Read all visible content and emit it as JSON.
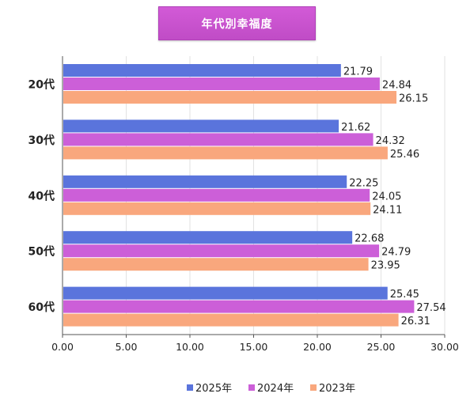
{
  "chart_data": {
    "type": "bar",
    "orientation": "horizontal",
    "title": "年代別幸福度",
    "xlabel": "",
    "ylabel": "",
    "categories": [
      "20代",
      "30代",
      "40代",
      "50代",
      "60代"
    ],
    "series": [
      {
        "name": "2025年",
        "color": "#5a74dc",
        "values": [
          21.79,
          21.62,
          22.25,
          22.68,
          25.45
        ]
      },
      {
        "name": "2024年",
        "color": "#cc5fd8",
        "values": [
          24.84,
          24.32,
          24.05,
          24.79,
          27.54
        ]
      },
      {
        "name": "2023年",
        "color": "#f9a77d",
        "values": [
          26.15,
          25.46,
          24.11,
          23.95,
          26.31
        ]
      }
    ],
    "xlim": [
      0,
      30
    ],
    "xticks": [
      "0.00",
      "5.00",
      "10.00",
      "15.00",
      "20.00",
      "25.00",
      "30.00"
    ],
    "data_labels": [
      [
        "21.79",
        "21.62",
        "22.25",
        "22.68",
        "25.45"
      ],
      [
        "24.84",
        "24.32",
        "24.05",
        "24.79",
        "27.54"
      ],
      [
        "26.15",
        "25.46",
        "24.11",
        "23.95",
        "26.31"
      ]
    ],
    "grid": "vertical",
    "legend_position": "bottom"
  }
}
